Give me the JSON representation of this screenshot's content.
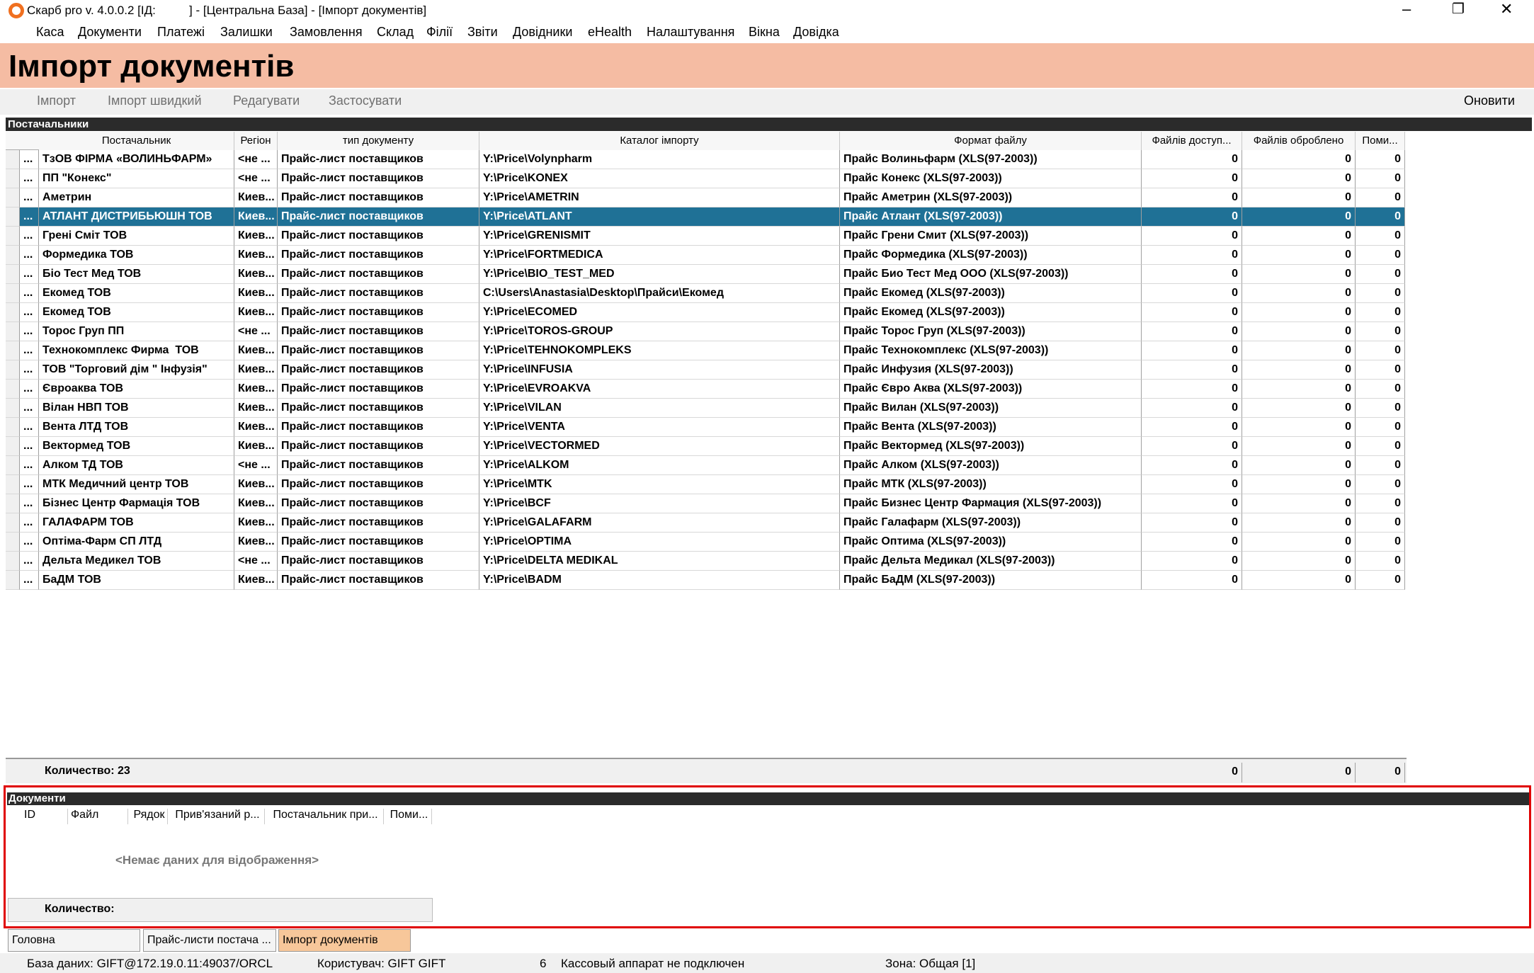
{
  "window": {
    "title": "Скарб pro v. 4.0.0.2 [ІД:          ] - [Центральна База] - [Імпорт документів]"
  },
  "menu": [
    "Каса",
    "Документи",
    "Платежі",
    "Залишки",
    "Замовлення",
    "Склад",
    "Філії",
    "Звіти",
    "Довідники",
    "eHealth",
    "Налаштування",
    "Вікна",
    "Довідка"
  ],
  "header": {
    "title": "Імпорт документів"
  },
  "toolbar": [
    "Імпорт",
    "Імпорт швидкий",
    "Редагувати",
    "Застосувати",
    "Оновити"
  ],
  "suppliers": {
    "title": "Постачальники",
    "columns": [
      "Постачальник",
      "Регіон",
      "тип документу",
      "Каталог імпорту",
      "Формат файлу",
      "Файлів доступ...",
      "Файлів оброблено",
      "Поми..."
    ],
    "selected_row": 3,
    "rows": [
      [
        "...",
        "ТзОВ ФІРМА «ВОЛИНЬФАРМ»",
        "<не ...",
        "Прайс-лист поставщиков",
        "Y:\\Price\\Volynpharm",
        "Прайс Волиньфарм (XLS(97-2003))",
        0,
        0,
        0
      ],
      [
        "...",
        "ПП \"Конекс\"",
        "<не ...",
        "Прайс-лист поставщиков",
        "Y:\\Price\\KONEX",
        "Прайс Конекс (XLS(97-2003))",
        0,
        0,
        0
      ],
      [
        "...",
        "Аметрин",
        "Киев...",
        "Прайс-лист поставщиков",
        "Y:\\Price\\AMETRIN",
        "Прайс Аметрин (XLS(97-2003))",
        0,
        0,
        0
      ],
      [
        "...",
        "АТЛАНТ ДИСТРИБЬЮШН ТОВ",
        "Киев...",
        "Прайс-лист поставщиков",
        "Y:\\Price\\ATLANT",
        "Прайс Атлант (XLS(97-2003))",
        0,
        0,
        0
      ],
      [
        "...",
        "Грені Сміт ТОВ",
        "Киев...",
        "Прайс-лист поставщиков",
        "Y:\\Price\\GRENISMIT",
        "Прайс Грени Смит (XLS(97-2003))",
        0,
        0,
        0
      ],
      [
        "...",
        "Формедика ТОВ",
        "Киев...",
        "Прайс-лист поставщиков",
        "Y:\\Price\\FORTMEDICA",
        "Прайс Формедика (XLS(97-2003))",
        0,
        0,
        0
      ],
      [
        "...",
        "Біо Тест Мед ТОВ",
        "Киев...",
        "Прайс-лист поставщиков",
        "Y:\\Price\\BIO_TEST_MED",
        "Прайс Био Тест Мед ООО (XLS(97-2003))",
        0,
        0,
        0
      ],
      [
        "...",
        "Екомед ТОВ",
        "Киев...",
        "Прайс-лист поставщиков",
        "C:\\Users\\Anastasia\\Desktop\\Прайси\\Екомед",
        "Прайс Екомед (XLS(97-2003))",
        0,
        0,
        0
      ],
      [
        "...",
        "Екомед ТОВ",
        "Киев...",
        "Прайс-лист поставщиков",
        "Y:\\Price\\ECOMED",
        "Прайс Екомед (XLS(97-2003))",
        0,
        0,
        0
      ],
      [
        "...",
        "Торос Груп ПП",
        "<не ...",
        "Прайс-лист поставщиков",
        "Y:\\Price\\TOROS-GROUP",
        "Прайс Торос Груп (XLS(97-2003))",
        0,
        0,
        0
      ],
      [
        "...",
        "Технокомплекс Фирма  ТОВ",
        "Киев...",
        "Прайс-лист поставщиков",
        "Y:\\Price\\TEHNOKOMPLEKS",
        "Прайс Технокомплекс (XLS(97-2003))",
        0,
        0,
        0
      ],
      [
        "...",
        "ТОВ \"Торговий дім \" Інфузія\"",
        "Киев...",
        "Прайс-лист поставщиков",
        "Y:\\Price\\INFUSIA",
        "Прайс Инфузия (XLS(97-2003))",
        0,
        0,
        0
      ],
      [
        "...",
        "Євроаква ТОВ",
        "Киев...",
        "Прайс-лист поставщиков",
        "Y:\\Price\\EVROAKVA",
        "Прайс Євро Аква (XLS(97-2003))",
        0,
        0,
        0
      ],
      [
        "...",
        "Вілан НВП ТОВ",
        "Киев...",
        "Прайс-лист поставщиков",
        "Y:\\Price\\VILAN",
        "Прайс Вилан (XLS(97-2003))",
        0,
        0,
        0
      ],
      [
        "...",
        "Вента ЛТД ТОВ",
        "Киев...",
        "Прайс-лист поставщиков",
        "Y:\\Price\\VENTA",
        "Прайс Вента (XLS(97-2003))",
        0,
        0,
        0
      ],
      [
        "...",
        "Вектормед ТОВ",
        "Киев...",
        "Прайс-лист поставщиков",
        "Y:\\Price\\VECTORMED",
        "Прайс Вектормед (XLS(97-2003))",
        0,
        0,
        0
      ],
      [
        "...",
        "Алком ТД ТОВ",
        "<не ...",
        "Прайс-лист поставщиков",
        "Y:\\Price\\ALKOM",
        "Прайс Алком (XLS(97-2003))",
        0,
        0,
        0
      ],
      [
        "...",
        "МТК Медичний центр ТОВ",
        "Киев...",
        "Прайс-лист поставщиков",
        "Y:\\Price\\MTK",
        "Прайс МТК (XLS(97-2003))",
        0,
        0,
        0
      ],
      [
        "...",
        "Бізнес Центр Фармація ТОВ",
        "Киев...",
        "Прайс-лист поставщиков",
        "Y:\\Price\\BCF",
        "Прайс Бизнес Центр Фармация (XLS(97-2003))",
        0,
        0,
        0
      ],
      [
        "...",
        "ГАЛАФАРМ ТОВ",
        "Киев...",
        "Прайс-лист поставщиков",
        "Y:\\Price\\GALAFARM",
        "Прайс Галафарм (XLS(97-2003))",
        0,
        0,
        0
      ],
      [
        "...",
        "Оптіма-Фарм СП ЛТД",
        "Киев...",
        "Прайс-лист поставщиков",
        "Y:\\Price\\OPTIMA",
        "Прайс Оптима (XLS(97-2003))",
        0,
        0,
        0
      ],
      [
        "...",
        "Дельта Медикел ТОВ",
        "<не ...",
        "Прайс-лист поставщиков",
        "Y:\\Price\\DELTA MEDIKAL",
        "Прайс Дельта Медикал (XLS(97-2003))",
        0,
        0,
        0
      ],
      [
        "...",
        "БаДМ ТОВ",
        "Киев...",
        "Прайс-лист поставщиков",
        "Y:\\Price\\BADM",
        "Прайс БаДМ (XLS(97-2003))",
        0,
        0,
        0
      ]
    ],
    "footer": {
      "label": "Количество: 23",
      "totals": [
        0,
        0,
        0
      ]
    }
  },
  "documents": {
    "title": "Документи",
    "columns": [
      "ID",
      "Файл",
      "Рядок",
      "Прив'язаний р...",
      "Постачальник при...",
      "Поми..."
    ],
    "empty": "<Немає даних для відображення>",
    "footer": "Количество:"
  },
  "tabs": [
    "Головна",
    "Прайс-листи постача ...",
    "Імпорт документів"
  ],
  "status": [
    "База даних: GIFT@172.19.0.11:49037/ORCL",
    "Користувач: GIFT GIFT",
    "6",
    "Кассовый аппарат не подключен",
    "Зона: Общая [1]"
  ]
}
